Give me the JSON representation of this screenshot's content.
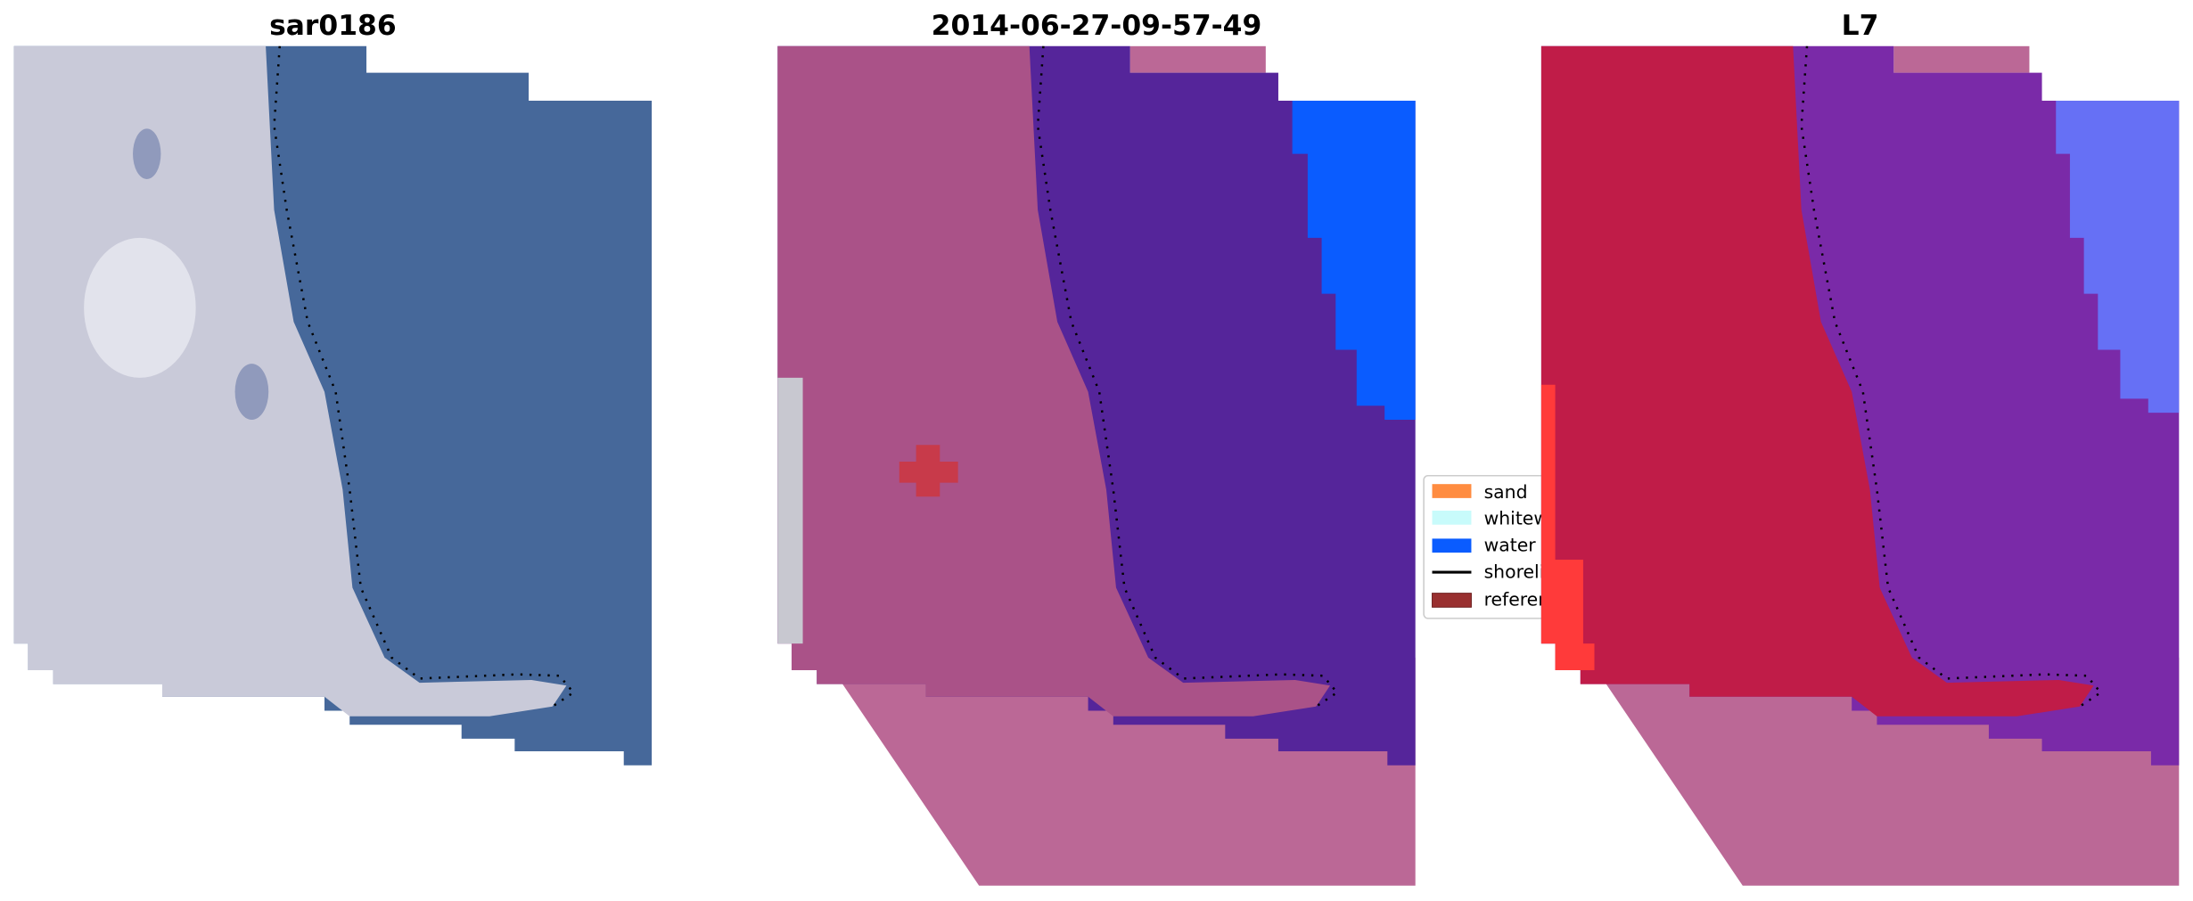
{
  "panels": [
    {
      "title": "sar0186",
      "colors": {
        "land": "#c9cad9",
        "water": "#46689a",
        "highlight": "#e8e8f0"
      }
    },
    {
      "title": "2014-06-27-09-57-49",
      "colors": {
        "land": "#aa5288",
        "water": "#55259a",
        "ocean": "#0a5cff",
        "outside": "#bb6896"
      }
    },
    {
      "title": "L7",
      "colors": {
        "land": "#c01c48",
        "water": "#7a2aa8",
        "ocean": "#6670f5",
        "outside": "#bb6896"
      }
    }
  ],
  "legend": {
    "items": [
      {
        "label": "sand",
        "color": "#ff8c40",
        "kind": "patch"
      },
      {
        "label": "whitewater",
        "color": "#c8fbfb",
        "kind": "patch"
      },
      {
        "label": "water",
        "color": "#0a5cff",
        "kind": "patch"
      },
      {
        "label": "shoreline",
        "color": "#000000",
        "kind": "line"
      },
      {
        "label": "reference",
        "color": "#993030",
        "kind": "patch"
      }
    ]
  }
}
